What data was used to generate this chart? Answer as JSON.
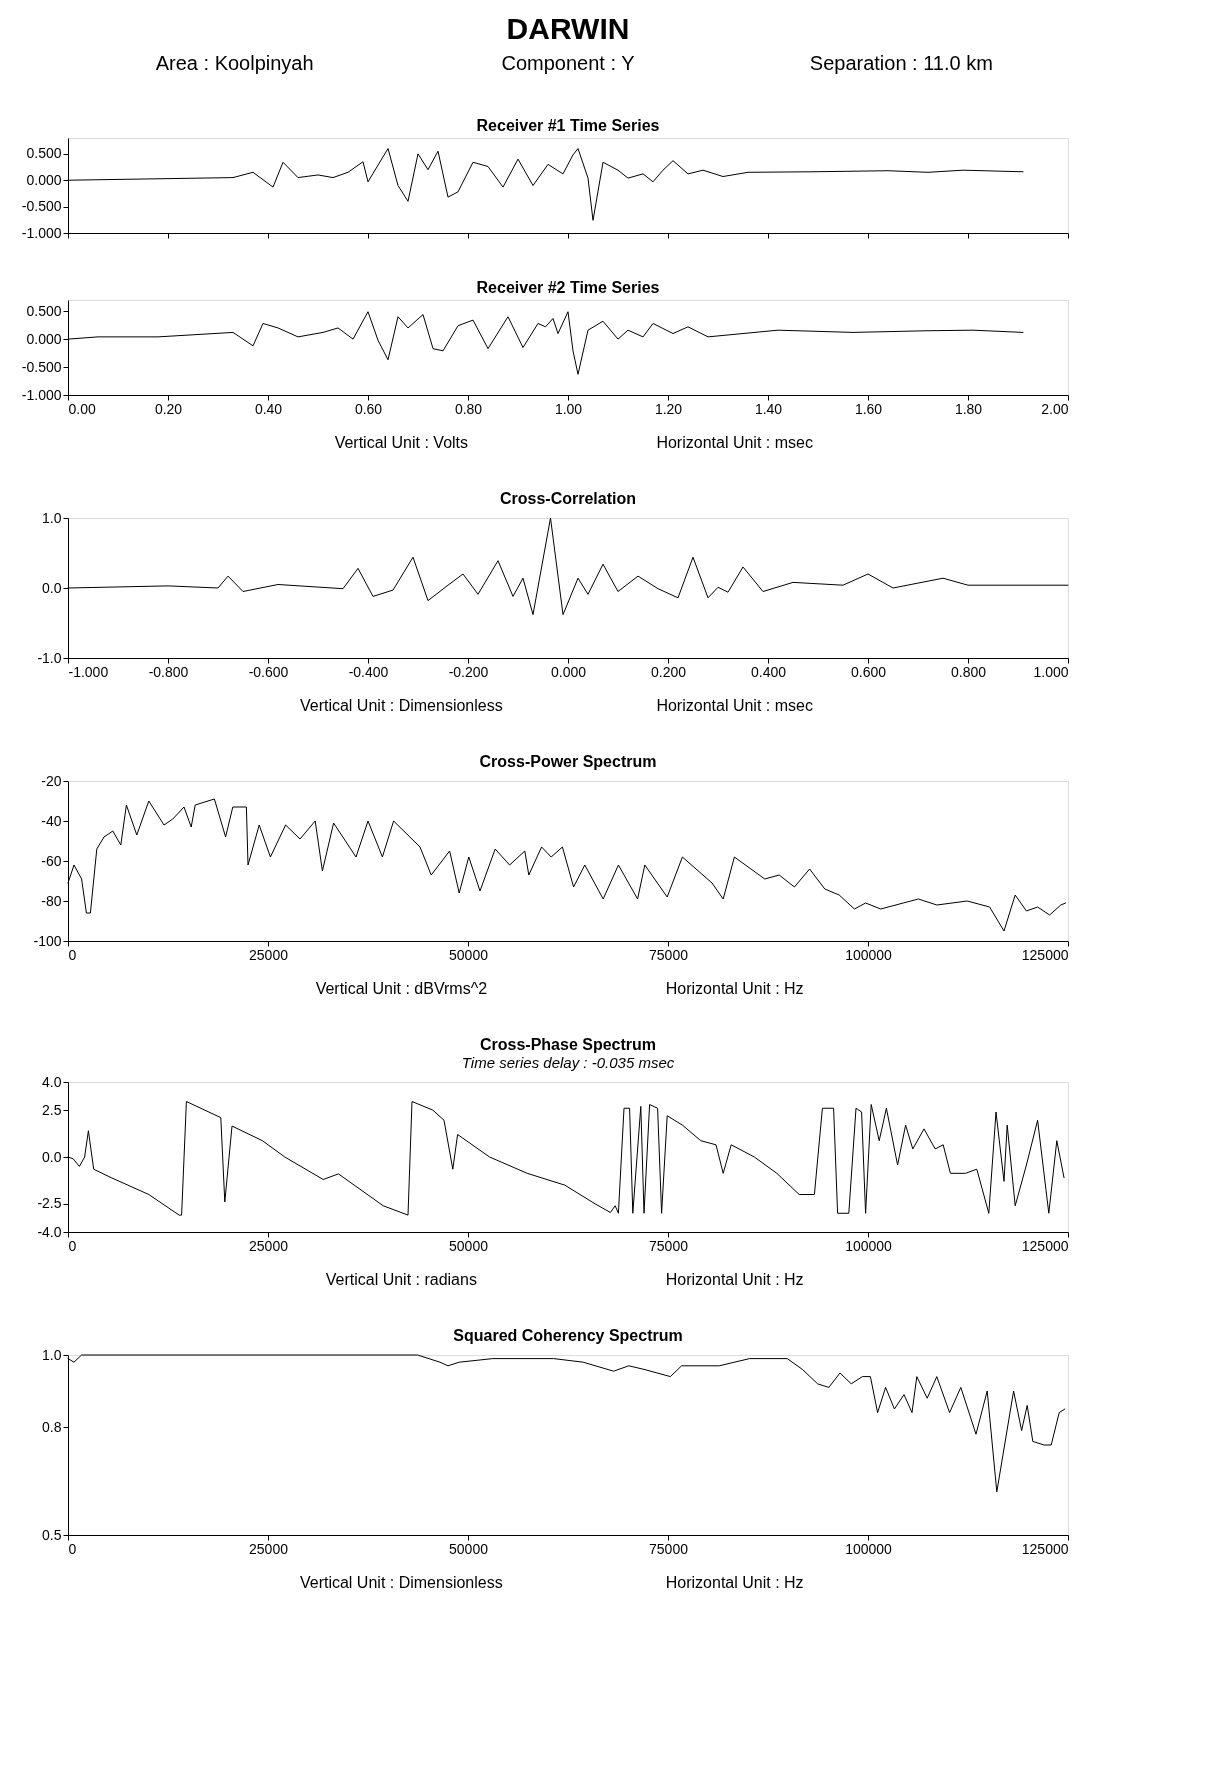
{
  "chart_data": [
    {
      "type": "other",
      "title": "DARWIN",
      "annotations": [
        "Area : Koolpinyah",
        "Component : Y",
        "Separation : 11.0 km"
      ]
    },
    {
      "type": "line",
      "title": "Receiver #1 Time Series",
      "tick_labels": "y",
      "xlim": [
        0,
        2
      ],
      "ylim": [
        -1,
        0.8
      ],
      "xticks": [
        0,
        0.2,
        0.4,
        0.6,
        0.8,
        1.0,
        1.2,
        1.4,
        1.6,
        1.8,
        2.0
      ],
      "yticks": [
        {
          "value": 0.5,
          "label": "0.500"
        },
        {
          "value": 0,
          "label": "0.000"
        },
        {
          "value": -0.5,
          "label": "-0.500"
        },
        {
          "value": -1,
          "label": "-1.000"
        }
      ],
      "x": [
        0,
        0.33,
        0.35,
        0.37,
        0.41,
        0.43,
        0.46,
        0.5,
        0.53,
        0.56,
        0.59,
        0.6,
        0.64,
        0.66,
        0.68,
        0.7,
        0.72,
        0.74,
        0.76,
        0.78,
        0.81,
        0.84,
        0.87,
        0.9,
        0.93,
        0.96,
        0.99,
        1.01,
        1.02,
        1.04,
        1.05,
        1.07,
        1.1,
        1.12,
        1.15,
        1.17,
        1.19,
        1.21,
        1.24,
        1.27,
        1.31,
        1.36,
        1.49,
        1.64,
        1.72,
        1.79,
        1.91
      ],
      "series": [
        {
          "color": "#000000",
          "values": [
            0,
            0.05,
            0.1,
            0.15,
            -0.13,
            0.34,
            0.05,
            0.1,
            0.05,
            0.15,
            0.35,
            -0.03,
            0.6,
            -0.1,
            -0.4,
            0.5,
            0.2,
            0.55,
            -0.32,
            -0.22,
            0.34,
            0.26,
            -0.13,
            0.4,
            -0.1,
            0.3,
            0.12,
            0.48,
            0.6,
            0.04,
            -0.76,
            0.34,
            0.19,
            0.04,
            0.12,
            -0.03,
            0.19,
            0.37,
            0.12,
            0.19,
            0.07,
            0.15,
            0.16,
            0.18,
            0.15,
            0.19,
            0.16
          ]
        }
      ]
    },
    {
      "type": "line",
      "title": "Receiver #2 Time Series",
      "xlim": [
        0,
        2
      ],
      "ylim": [
        -1,
        0.7
      ],
      "annotations": [
        "Vertical Unit : Volts",
        "Horizontal Unit : msec"
      ],
      "xticks": [
        {
          "value": 0,
          "label": "0.00"
        },
        {
          "value": 0.2,
          "label": "0.20"
        },
        {
          "value": 0.4,
          "label": "0.40"
        },
        {
          "value": 0.6,
          "label": "0.60"
        },
        {
          "value": 0.8,
          "label": "0.80"
        },
        {
          "value": 1.0,
          "label": "1.00"
        },
        {
          "value": 1.2,
          "label": "1.20"
        },
        {
          "value": 1.4,
          "label": "1.40"
        },
        {
          "value": 1.6,
          "label": "1.60"
        },
        {
          "value": 1.8,
          "label": "1.80"
        },
        {
          "value": 2.0,
          "label": "2.00"
        }
      ],
      "yticks": [
        {
          "value": 0.5,
          "label": "0.500"
        },
        {
          "value": 0,
          "label": "0.000"
        },
        {
          "value": -0.5,
          "label": "-0.500"
        },
        {
          "value": -1,
          "label": "-1.000"
        }
      ],
      "x": [
        0,
        0.06,
        0.18,
        0.33,
        0.37,
        0.39,
        0.42,
        0.46,
        0.51,
        0.54,
        0.57,
        0.6,
        0.62,
        0.64,
        0.66,
        0.68,
        0.71,
        0.73,
        0.75,
        0.78,
        0.81,
        0.84,
        0.88,
        0.91,
        0.94,
        0.955,
        0.97,
        0.98,
        1.0,
        1.01,
        1.02,
        1.04,
        1.07,
        1.1,
        1.12,
        1.15,
        1.17,
        1.21,
        1.24,
        1.28,
        1.42,
        1.57,
        1.72,
        1.81,
        1.91
      ],
      "series": [
        {
          "color": "#000000",
          "values": [
            0,
            0.04,
            0.04,
            0.12,
            -0.12,
            0.28,
            0.2,
            0.04,
            0.12,
            0.2,
            0,
            0.49,
            -0.02,
            -0.37,
            0.4,
            0.2,
            0.44,
            -0.17,
            -0.21,
            0.24,
            0.34,
            -0.17,
            0.4,
            -0.15,
            0.28,
            0.22,
            0.37,
            0.1,
            0.49,
            -0.21,
            -0.63,
            0.16,
            0.32,
            0,
            0.16,
            0.04,
            0.28,
            0.1,
            0.22,
            0.04,
            0.16,
            0.12,
            0.15,
            0.16,
            0.12
          ]
        }
      ]
    },
    {
      "type": "line",
      "title": "Cross-Correlation",
      "xlim": [
        -1,
        1
      ],
      "ylim": [
        -1,
        1
      ],
      "annotations": [
        "Vertical Unit : Dimensionless",
        "Horizontal Unit : msec"
      ],
      "xticks": [
        {
          "value": -1,
          "label": "-1.000"
        },
        {
          "value": -0.8,
          "label": "-0.800"
        },
        {
          "value": -0.6,
          "label": "-0.600"
        },
        {
          "value": -0.4,
          "label": "-0.400"
        },
        {
          "value": -0.2,
          "label": "-0.200"
        },
        {
          "value": 0,
          "label": "0.000"
        },
        {
          "value": 0.2,
          "label": "0.200"
        },
        {
          "value": 0.4,
          "label": "0.400"
        },
        {
          "value": 0.6,
          "label": "0.600"
        },
        {
          "value": 0.8,
          "label": "0.800"
        },
        {
          "value": 1,
          "label": "1.000"
        }
      ],
      "yticks": [
        {
          "value": 1,
          "label": "1.0"
        },
        {
          "value": 0,
          "label": "0.0"
        },
        {
          "value": -1,
          "label": "-1.0"
        }
      ],
      "x": [
        -1,
        -0.8,
        -0.7,
        -0.68,
        -0.65,
        -0.58,
        -0.45,
        -0.42,
        -0.39,
        -0.35,
        -0.31,
        -0.28,
        -0.24,
        -0.21,
        -0.18,
        -0.14,
        -0.11,
        -0.09,
        -0.07,
        -0.035,
        -0.01,
        0.02,
        0.04,
        0.07,
        0.1,
        0.14,
        0.18,
        0.22,
        0.25,
        0.28,
        0.3,
        0.32,
        0.35,
        0.39,
        0.45,
        0.55,
        0.6,
        0.65,
        0.75,
        0.8,
        0.9,
        1
      ],
      "series": [
        {
          "color": "#000000",
          "values": [
            0,
            0.03,
            0,
            0.17,
            -0.05,
            0.05,
            -0.01,
            0.28,
            -0.12,
            -0.03,
            0.44,
            -0.18,
            0.04,
            0.2,
            -0.09,
            0.39,
            -0.12,
            0.14,
            -0.38,
            1.0,
            -0.38,
            0.14,
            -0.09,
            0.34,
            -0.05,
            0.17,
            -0.01,
            -0.14,
            0.44,
            -0.14,
            0.01,
            -0.06,
            0.3,
            -0.05,
            0.08,
            0.04,
            0.2,
            0,
            0.14,
            0.04,
            0.04,
            0.04
          ]
        }
      ]
    },
    {
      "type": "line",
      "title": "Cross-Power Spectrum",
      "xlim": [
        0,
        125000
      ],
      "ylim": [
        -100,
        -20
      ],
      "annotations": [
        "Vertical Unit : dBVrms^2",
        "Horizontal Unit : Hz"
      ],
      "xticks": [
        0,
        25000,
        50000,
        75000,
        100000,
        125000
      ],
      "yticks": [
        -20,
        -40,
        -60,
        -80,
        -100
      ],
      "x": [
        0,
        750,
        1700,
        2300,
        2800,
        3600,
        4500,
        5600,
        6600,
        7300,
        8600,
        10100,
        12000,
        13100,
        14500,
        15400,
        15900,
        18300,
        19700,
        20600,
        22300,
        22500,
        23900,
        25300,
        27200,
        29000,
        30900,
        31800,
        33200,
        36000,
        37500,
        39300,
        40700,
        44000,
        45400,
        47700,
        48900,
        50100,
        51500,
        53400,
        55200,
        57100,
        57600,
        59200,
        60400,
        61800,
        63200,
        64600,
        66900,
        68800,
        71200,
        72100,
        74900,
        76800,
        80500,
        81900,
        83300,
        87100,
        88900,
        90800,
        92700,
        94600,
        96400,
        98300,
        99700,
        101600,
        104400,
        106300,
        108600,
        112400,
        115200,
        117000,
        118400,
        119800,
        121200,
        122700,
        124100,
        124700
      ],
      "series": [
        {
          "color": "#000000",
          "values": [
            -71,
            -62,
            -69,
            -86,
            -86,
            -54,
            -48,
            -45,
            -52,
            -32,
            -47,
            -30,
            -42,
            -39,
            -33,
            -43,
            -32,
            -29,
            -48,
            -33,
            -33,
            -62,
            -42,
            -58,
            -42,
            -49,
            -40,
            -65,
            -41,
            -58,
            -40,
            -58,
            -40,
            -53,
            -67,
            -55,
            -76,
            -58,
            -75,
            -54,
            -62,
            -55,
            -67,
            -53,
            -58,
            -53,
            -73,
            -62,
            -79,
            -62,
            -79,
            -62,
            -78,
            -58,
            -71,
            -79,
            -58,
            -69,
            -67,
            -73,
            -64,
            -74,
            -77,
            -84,
            -81,
            -84,
            -81,
            -79,
            -82,
            -80,
            -83,
            -95,
            -77,
            -85,
            -83,
            -87,
            -82,
            -81
          ]
        }
      ]
    },
    {
      "type": "line",
      "title": "Cross-Phase Spectrum",
      "subtitle": "Time series delay : -0.035 msec",
      "xlim": [
        0,
        125000
      ],
      "ylim": [
        -4,
        4
      ],
      "annotations": [
        "Vertical Unit : radians",
        "Horizontal Unit : Hz"
      ],
      "xticks": [
        0,
        25000,
        50000,
        75000,
        100000,
        125000
      ],
      "yticks": [
        {
          "value": 4,
          "label": "4.0"
        },
        {
          "value": 2.5,
          "label": "2.5"
        },
        {
          "value": 0,
          "label": "0.0"
        },
        {
          "value": -2.5,
          "label": "-2.5"
        },
        {
          "value": -4,
          "label": "-4.0"
        }
      ],
      "x": [
        0,
        660,
        1420,
        2080,
        2550,
        3210,
        5390,
        10100,
        13900,
        14200,
        14800,
        19100,
        19600,
        20500,
        24300,
        27100,
        31900,
        33800,
        39400,
        42500,
        43000,
        45600,
        47000,
        48100,
        48700,
        52700,
        57400,
        62100,
        65900,
        67800,
        68400,
        68800,
        69500,
        70200,
        70600,
        71600,
        72000,
        72700,
        73700,
        74200,
        74900,
        76800,
        79100,
        81000,
        81900,
        82900,
        85800,
        88600,
        91400,
        93300,
        94300,
        95700,
        96200,
        97600,
        98500,
        99200,
        99700,
        100400,
        101400,
        102300,
        103700,
        104700,
        105600,
        107000,
        108400,
        109400,
        110300,
        112200,
        113600,
        115100,
        116000,
        117000,
        117400,
        118400,
        119800,
        121200,
        122600,
        123600,
        124500
      ],
      "series": [
        {
          "color": "#000000",
          "values": [
            0,
            -0.1,
            -0.5,
            0,
            1.4,
            -0.65,
            -1.1,
            -2.0,
            -3.1,
            -3.1,
            2.96,
            2.1,
            -2.4,
            1.65,
            0.87,
            0,
            -1.2,
            -0.9,
            -2.6,
            -3.1,
            2.96,
            2.5,
            1.96,
            -0.65,
            1.2,
            0,
            -0.87,
            -1.5,
            -2.5,
            -2.96,
            -2.6,
            -3.0,
            2.6,
            2.6,
            -3.0,
            2.7,
            -3.0,
            2.8,
            2.6,
            -3.0,
            2.2,
            1.7,
            0.87,
            0.65,
            -0.87,
            0.65,
            0,
            -0.87,
            -2.0,
            -2.0,
            2.6,
            2.6,
            -3.0,
            -3.0,
            2.6,
            2.4,
            -3.0,
            2.8,
            0.87,
            2.6,
            -0.43,
            1.7,
            0.43,
            1.5,
            0.43,
            0.65,
            -0.87,
            -0.87,
            -0.65,
            -3.0,
            2.4,
            -1.3,
            1.7,
            -2.6,
            -0.43,
            1.96,
            -3.0,
            0.87,
            -1.1
          ]
        }
      ]
    },
    {
      "type": "line",
      "title": "Squared Coherency Spectrum",
      "xlim": [
        0,
        125000
      ],
      "ylim": [
        0.5,
        1.0
      ],
      "annotations": [
        "Vertical Unit : Dimensionless",
        "Horizontal Unit : Hz"
      ],
      "xticks": [
        0,
        25000,
        50000,
        75000,
        100000,
        125000
      ],
      "yticks": [
        {
          "value": 1.0,
          "label": "1.0"
        },
        {
          "value": 0.8,
          "label": "0.8"
        },
        {
          "value": 0.5,
          "label": "0.5"
        }
      ],
      "x": [
        0,
        750,
        1700,
        43700,
        46500,
        47500,
        48900,
        53100,
        60700,
        64400,
        68200,
        70100,
        72000,
        75300,
        76700,
        81400,
        85200,
        89900,
        91800,
        93700,
        95100,
        96500,
        97900,
        99300,
        100300,
        101200,
        102200,
        103300,
        104500,
        105500,
        106100,
        107400,
        108600,
        110200,
        111600,
        113500,
        114900,
        116100,
        118200,
        119200,
        119900,
        120600,
        122000,
        122900,
        123900,
        124600
      ],
      "series": [
        {
          "color": "#000000",
          "values": [
            0.99,
            0.98,
            1.0,
            1.0,
            0.98,
            0.97,
            0.98,
            0.99,
            0.99,
            0.98,
            0.955,
            0.97,
            0.96,
            0.94,
            0.97,
            0.97,
            0.99,
            0.99,
            0.96,
            0.92,
            0.91,
            0.95,
            0.92,
            0.94,
            0.94,
            0.84,
            0.91,
            0.85,
            0.89,
            0.84,
            0.94,
            0.88,
            0.94,
            0.84,
            0.91,
            0.78,
            0.9,
            0.62,
            0.9,
            0.79,
            0.86,
            0.76,
            0.75,
            0.75,
            0.84,
            0.85
          ]
        }
      ]
    }
  ]
}
